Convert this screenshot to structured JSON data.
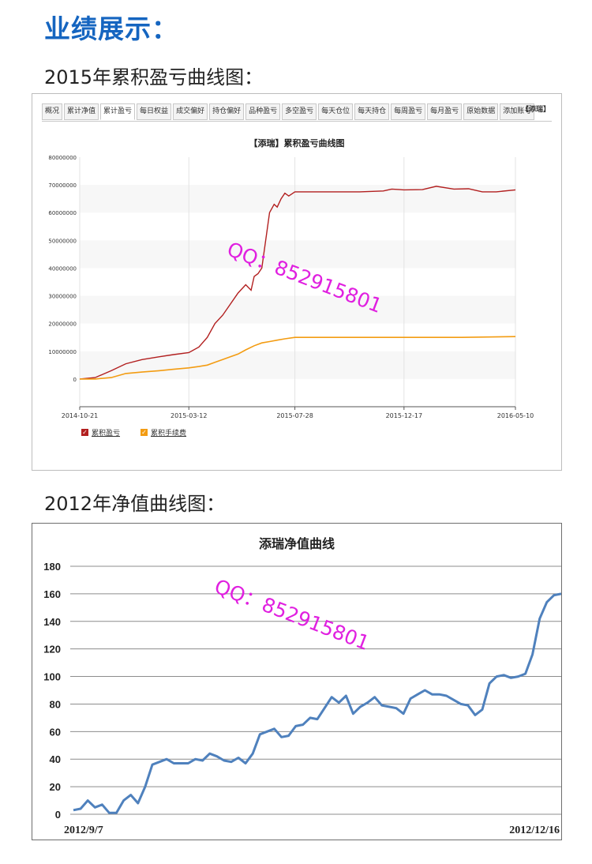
{
  "page": {
    "heading": "业绩展示：",
    "section_2015_title": "2015年累积盈亏曲线图：",
    "section_2012_title": "2012年净值曲线图："
  },
  "panel1": {
    "tabs": [
      "概况",
      "累计净值",
      "累计盈亏",
      "每日权益",
      "成交偏好",
      "持仓偏好",
      "品种盈亏",
      "多空盈亏",
      "每天仓位",
      "每天持仓",
      "每周盈亏",
      "每月盈亏",
      "原始数据",
      "添加账号"
    ],
    "active_tab": 2,
    "brand_tag": "【添瑞】",
    "watermark": "QQ：852915801"
  },
  "panel2": {
    "watermark": "QQ：852915801"
  },
  "colors": {
    "heading": "#1565c0",
    "pnl_line": "#b21f1f",
    "fee_line": "#f39c12",
    "nav_line": "#4f81bd",
    "watermark": "#e020e0"
  },
  "chart_data": [
    {
      "type": "line",
      "title": "【添瑞】累积盈亏曲线图",
      "x_tick_labels": [
        "2014-10-21",
        "2015-03-12",
        "2015-07-28",
        "2015-12-17",
        "2016-05-10"
      ],
      "y_tick_labels": [
        "0",
        "10000000",
        "20000000",
        "30000000",
        "40000000",
        "50000000",
        "60000000",
        "70000000",
        "80000000"
      ],
      "ylim": [
        -10000000,
        80000000
      ],
      "grid": "horizontal bands + vertical lines",
      "legend_position": "bottom-left",
      "series": [
        {
          "name": "累积盈亏",
          "x": [
            "2014-10-21",
            "2014-11-10",
            "2014-12-01",
            "2014-12-20",
            "2015-01-10",
            "2015-02-01",
            "2015-02-20",
            "2015-03-12",
            "2015-03-25",
            "2015-04-05",
            "2015-04-15",
            "2015-04-25",
            "2015-05-05",
            "2015-05-15",
            "2015-05-25",
            "2015-06-01",
            "2015-06-05",
            "2015-06-10",
            "2015-06-15",
            "2015-06-20",
            "2015-06-25",
            "2015-07-01",
            "2015-07-05",
            "2015-07-10",
            "2015-07-15",
            "2015-07-20",
            "2015-07-28",
            "2015-08-20",
            "2015-09-20",
            "2015-10-20",
            "2015-11-20",
            "2015-12-01",
            "2015-12-17",
            "2016-01-10",
            "2016-01-28",
            "2016-02-20",
            "2016-03-10",
            "2016-03-28",
            "2016-04-15",
            "2016-05-10"
          ],
          "values": [
            0,
            500000,
            3000000,
            5500000,
            7000000,
            8000000,
            8800000,
            9500000,
            11500000,
            15000000,
            20000000,
            23000000,
            27000000,
            31000000,
            34000000,
            32000000,
            37000000,
            38000000,
            40000000,
            50000000,
            60000000,
            63000000,
            62000000,
            65000000,
            67000000,
            66000000,
            67500000,
            67500000,
            67500000,
            67500000,
            67800000,
            68500000,
            68200000,
            68300000,
            69500000,
            68500000,
            68600000,
            67500000,
            67500000,
            68200000
          ]
        },
        {
          "name": "累积手续费",
          "x": [
            "2014-10-21",
            "2014-11-10",
            "2014-12-01",
            "2014-12-20",
            "2015-01-10",
            "2015-02-01",
            "2015-02-20",
            "2015-03-12",
            "2015-03-25",
            "2015-04-05",
            "2015-04-15",
            "2015-04-25",
            "2015-05-05",
            "2015-05-15",
            "2015-05-25",
            "2015-06-05",
            "2015-06-15",
            "2015-06-25",
            "2015-07-05",
            "2015-07-15",
            "2015-07-28",
            "2015-09-01",
            "2015-10-20",
            "2015-12-17",
            "2016-03-01",
            "2016-05-10"
          ],
          "values": [
            0,
            0,
            500000,
            2000000,
            2500000,
            3000000,
            3500000,
            4000000,
            4500000,
            5000000,
            6000000,
            7000000,
            8000000,
            9000000,
            10500000,
            12000000,
            13000000,
            13500000,
            14000000,
            14500000,
            15000000,
            15000000,
            15000000,
            15000000,
            15000000,
            15300000
          ]
        }
      ]
    },
    {
      "type": "line",
      "title": "添瑞净值曲线",
      "x_tick_labels": [
        "2012/9/7",
        "2012/12/16"
      ],
      "ylim": [
        0,
        180
      ],
      "y_ticks": [
        0,
        20,
        40,
        60,
        80,
        100,
        120,
        140,
        160,
        180
      ],
      "grid": "horizontal",
      "series": [
        {
          "values": [
            3,
            4,
            10,
            5,
            7,
            1,
            1,
            10,
            14,
            8,
            20,
            36,
            38,
            40,
            37,
            37,
            37,
            40,
            39,
            44,
            42,
            39,
            38,
            41,
            37,
            44,
            58,
            60,
            62,
            56,
            57,
            64,
            65,
            70,
            69,
            77,
            85,
            81,
            86,
            73,
            78,
            81,
            85,
            79,
            78,
            77,
            73,
            84,
            87,
            90,
            87,
            87,
            86,
            83,
            80,
            79,
            72,
            76,
            95,
            100,
            101,
            99,
            100,
            102,
            116,
            142,
            154,
            159,
            160
          ]
        }
      ]
    }
  ]
}
